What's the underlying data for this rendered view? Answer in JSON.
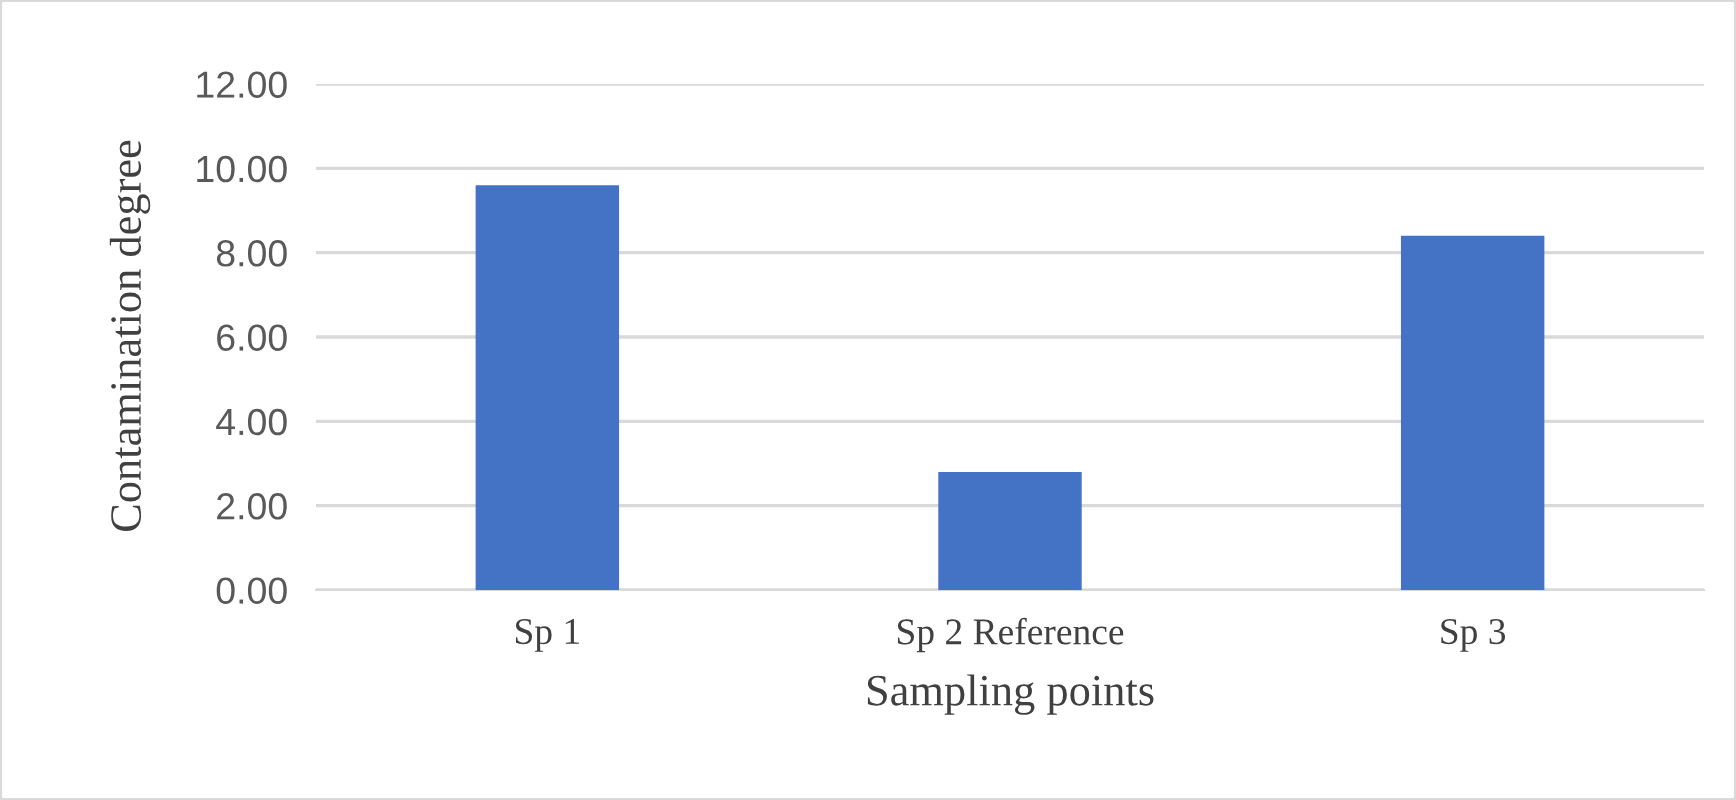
{
  "chart_data": {
    "type": "bar",
    "xlabel": "Sampling points",
    "ylabel": "Contamination degree",
    "categories": [
      "Sp 1",
      "Sp 2 Reference",
      "Sp 3"
    ],
    "values": [
      9.6,
      2.8,
      8.4
    ],
    "color": "#4472c4",
    "ylim": [
      0,
      12
    ],
    "yticks": [
      {
        "value": 0,
        "label": "0.00"
      },
      {
        "value": 2,
        "label": "2.00"
      },
      {
        "value": 4,
        "label": "4.00"
      },
      {
        "value": 6,
        "label": "6.00"
      },
      {
        "value": 8,
        "label": "8.00"
      },
      {
        "value": 10,
        "label": "10.00"
      },
      {
        "value": 12,
        "label": "12.00"
      }
    ],
    "grid": "y"
  }
}
